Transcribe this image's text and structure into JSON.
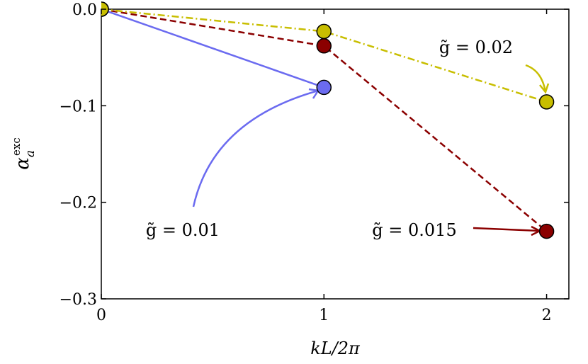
{
  "chart_data": {
    "type": "line",
    "xlabel": "kL/2π",
    "ylabel": "α",
    "ylabel_sub": "a",
    "ylabel_sup": "exc",
    "xlim": [
      0,
      2.1
    ],
    "ylim": [
      -0.3,
      0.0
    ],
    "xticks": [
      0,
      1,
      2
    ],
    "yticks": [
      {
        "value": 0.0,
        "label": "0.0"
      },
      {
        "value": -0.1,
        "label": "−0.1"
      },
      {
        "value": -0.2,
        "label": "−0.2"
      },
      {
        "value": -0.3,
        "label": "−0.3"
      }
    ],
    "series": [
      {
        "name": "g̃ = 0.01",
        "color": "#6b6bf0",
        "linestyle": "solid",
        "x": [
          0,
          1
        ],
        "values": [
          0,
          -0.081
        ]
      },
      {
        "name": "g̃ = 0.015",
        "color": "#8b0000",
        "linestyle": "dashed",
        "x": [
          0,
          1,
          2
        ],
        "values": [
          0,
          -0.038,
          -0.23
        ]
      },
      {
        "name": "g̃ = 0.02",
        "color": "#c8be00",
        "linestyle": "dashdot",
        "x": [
          0,
          1,
          2
        ],
        "values": [
          0,
          -0.023,
          -0.096
        ]
      }
    ]
  }
}
